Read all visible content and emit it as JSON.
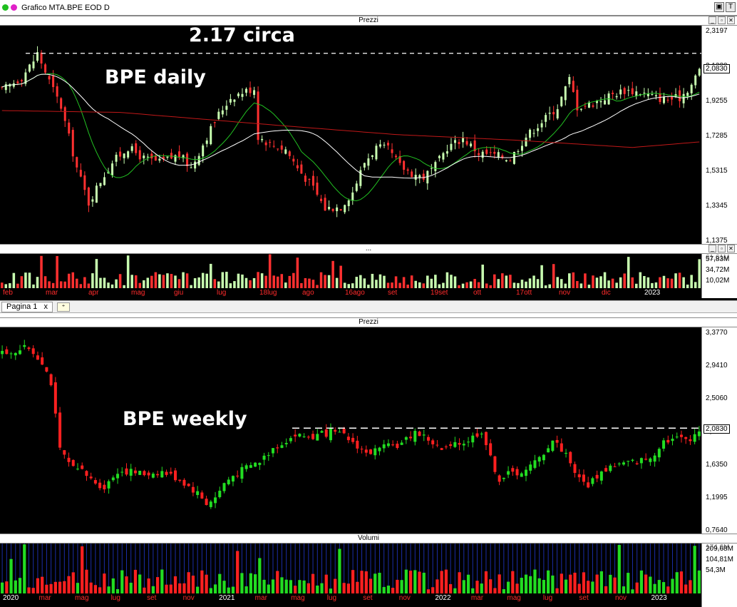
{
  "window": {
    "title": "Grafico MTA.BPE EOD D",
    "btn_max": "▣",
    "btn_t": "T"
  },
  "colors": {
    "up": "#c8ffb0",
    "down": "#ff3030",
    "ma_short": "#22c022",
    "ma_mid": "#ffffff",
    "ma_long": "#c01818",
    "wk_up": "#22dd22",
    "wk_down": "#ff2020",
    "vol_grid": "#1b2ea8"
  },
  "daily": {
    "panel_title": "Prezzi",
    "annotation_title": "BPE daily",
    "annotation_level": "2.17 circa",
    "y_ticks": [
      "2,3197",
      "2,1230",
      "1,9255",
      "1,7285",
      "1,5315",
      "1,3345",
      "1,1375"
    ],
    "last_price": "2,0830",
    "dashed_level": 2.17,
    "volume_panel_title": "...",
    "volume_ticks": [
      "57,83M",
      "34,72M",
      "10,02M"
    ],
    "volume_tick_overlap": "61,61M",
    "x_labels": [
      {
        "t": "feb",
        "year": false
      },
      {
        "t": "mar",
        "year": false
      },
      {
        "t": "apr",
        "year": false
      },
      {
        "t": "mag",
        "year": false
      },
      {
        "t": "giu",
        "year": false
      },
      {
        "t": "lug",
        "year": false
      },
      {
        "t": "18lug",
        "year": false
      },
      {
        "t": "ago",
        "year": false
      },
      {
        "t": "16ago",
        "year": false
      },
      {
        "t": "set",
        "year": false
      },
      {
        "t": "19set",
        "year": false
      },
      {
        "t": "ott",
        "year": false
      },
      {
        "t": "17ott",
        "year": false
      },
      {
        "t": "nov",
        "year": false
      },
      {
        "t": "dic",
        "year": false
      },
      {
        "t": "2023",
        "year": true
      }
    ]
  },
  "tabs": {
    "page_label": "Pagina 1",
    "close": "x",
    "add": "⁺"
  },
  "weekly": {
    "panel_title": "Prezzi",
    "annotation_title": "BPE weekly",
    "y_ticks": [
      "3,3770",
      "2,9410",
      "2,5060",
      "2,0830",
      "1,6350",
      "1,1995",
      "0,7640"
    ],
    "last_price": "2,0830",
    "dashed_level": 2.1,
    "volume_panel_title": "Volumi",
    "volume_ticks": [
      "209,68M",
      "104,81M",
      "54,3M"
    ],
    "volume_tick_overlap": "174,6M",
    "x_labels": [
      {
        "t": "2020",
        "year": true
      },
      {
        "t": "mar",
        "year": false
      },
      {
        "t": "mag",
        "year": false
      },
      {
        "t": "lug",
        "year": false
      },
      {
        "t": "set",
        "year": false
      },
      {
        "t": "nov",
        "year": false
      },
      {
        "t": "2021",
        "year": true
      },
      {
        "t": "mar",
        "year": false
      },
      {
        "t": "mag",
        "year": false
      },
      {
        "t": "lug",
        "year": false
      },
      {
        "t": "set",
        "year": false
      },
      {
        "t": "nov",
        "year": false
      },
      {
        "t": "2022",
        "year": true
      },
      {
        "t": "mar",
        "year": false
      },
      {
        "t": "mag",
        "year": false
      },
      {
        "t": "lug",
        "year": false
      },
      {
        "t": "set",
        "year": false
      },
      {
        "t": "nov",
        "year": false
      },
      {
        "t": "2023",
        "year": true
      }
    ]
  },
  "chart_data": [
    {
      "type": "candlestick",
      "title": "BPE daily",
      "ylim": [
        1.1375,
        2.3197
      ],
      "x_period": "feb 2022 - gen 2023",
      "close_path": [
        [
          0,
          1.97
        ],
        [
          5,
          2.04
        ],
        [
          8,
          2.13
        ],
        [
          9,
          2.17
        ],
        [
          12,
          2.02
        ],
        [
          15,
          1.88
        ],
        [
          19,
          1.55
        ],
        [
          22,
          1.36
        ],
        [
          25,
          1.48
        ],
        [
          28,
          1.58
        ],
        [
          32,
          1.66
        ],
        [
          36,
          1.6
        ],
        [
          40,
          1.58
        ],
        [
          45,
          1.62
        ],
        [
          48,
          1.55
        ],
        [
          52,
          1.72
        ],
        [
          55,
          1.84
        ],
        [
          58,
          1.93
        ],
        [
          61,
          1.96
        ],
        [
          64,
          1.98
        ],
        [
          65,
          1.72
        ],
        [
          68,
          1.68
        ],
        [
          72,
          1.65
        ],
        [
          75,
          1.55
        ],
        [
          79,
          1.44
        ],
        [
          82,
          1.33
        ],
        [
          86,
          1.34
        ],
        [
          89,
          1.42
        ],
        [
          92,
          1.58
        ],
        [
          95,
          1.66
        ],
        [
          98,
          1.65
        ],
        [
          101,
          1.56
        ],
        [
          104,
          1.52
        ],
        [
          107,
          1.5
        ],
        [
          110,
          1.56
        ],
        [
          113,
          1.66
        ],
        [
          117,
          1.71
        ],
        [
          121,
          1.63
        ],
        [
          125,
          1.62
        ],
        [
          129,
          1.6
        ],
        [
          133,
          1.72
        ],
        [
          137,
          1.8
        ],
        [
          141,
          1.88
        ],
        [
          144,
          2.03
        ],
        [
          146,
          1.88
        ],
        [
          150,
          1.9
        ],
        [
          154,
          1.94
        ],
        [
          158,
          1.97
        ],
        [
          162,
          1.96
        ],
        [
          166,
          1.93
        ],
        [
          169,
          1.92
        ],
        [
          172,
          1.93
        ],
        [
          175,
          2.0
        ],
        [
          177,
          2.08
        ]
      ],
      "moving_average_long": [
        [
          0,
          1.86
        ],
        [
          30,
          1.85
        ],
        [
          70,
          1.78
        ],
        [
          100,
          1.73
        ],
        [
          130,
          1.7
        ],
        [
          160,
          1.66
        ],
        [
          177,
          1.69
        ]
      ],
      "volume_range_millions": [
        10.02,
        61.61
      ],
      "annotations": [
        "2.17 circa",
        "BPE daily"
      ]
    },
    {
      "type": "candlestick",
      "title": "BPE weekly",
      "ylim": [
        0.764,
        3.377
      ],
      "x_period": "2020 - 2023",
      "close_path": [
        [
          0,
          3.05
        ],
        [
          6,
          3.12
        ],
        [
          9,
          2.95
        ],
        [
          11,
          2.68
        ],
        [
          13,
          1.82
        ],
        [
          16,
          1.58
        ],
        [
          18,
          1.55
        ],
        [
          20,
          1.45
        ],
        [
          23,
          1.35
        ],
        [
          26,
          1.56
        ],
        [
          29,
          1.55
        ],
        [
          32,
          1.52
        ],
        [
          36,
          1.55
        ],
        [
          40,
          1.45
        ],
        [
          44,
          1.28
        ],
        [
          46,
          1.15
        ],
        [
          48,
          1.22
        ],
        [
          50,
          1.4
        ],
        [
          52,
          1.5
        ],
        [
          55,
          1.6
        ],
        [
          58,
          1.68
        ],
        [
          61,
          1.85
        ],
        [
          64,
          1.95
        ],
        [
          66,
          2.01
        ],
        [
          70,
          1.99
        ],
        [
          74,
          2.05
        ],
        [
          77,
          2.0
        ],
        [
          80,
          1.88
        ],
        [
          82,
          1.78
        ],
        [
          86,
          1.85
        ],
        [
          90,
          1.9
        ],
        [
          93,
          2.06
        ],
        [
          96,
          1.96
        ],
        [
          99,
          1.82
        ],
        [
          102,
          1.88
        ],
        [
          105,
          1.95
        ],
        [
          108,
          2.07
        ],
        [
          110,
          1.72
        ],
        [
          112,
          1.45
        ],
        [
          114,
          1.52
        ],
        [
          118,
          1.56
        ],
        [
          121,
          1.72
        ],
        [
          124,
          1.95
        ],
        [
          127,
          1.78
        ],
        [
          130,
          1.45
        ],
        [
          132,
          1.38
        ],
        [
          134,
          1.5
        ],
        [
          137,
          1.62
        ],
        [
          140,
          1.65
        ],
        [
          143,
          1.68
        ],
        [
          146,
          1.72
        ],
        [
          149,
          1.95
        ],
        [
          152,
          1.97
        ],
        [
          155,
          1.98
        ],
        [
          157,
          2.08
        ]
      ],
      "volume_range_millions": [
        54.3,
        209.68
      ],
      "annotations": [
        "BPE weekly"
      ]
    }
  ]
}
